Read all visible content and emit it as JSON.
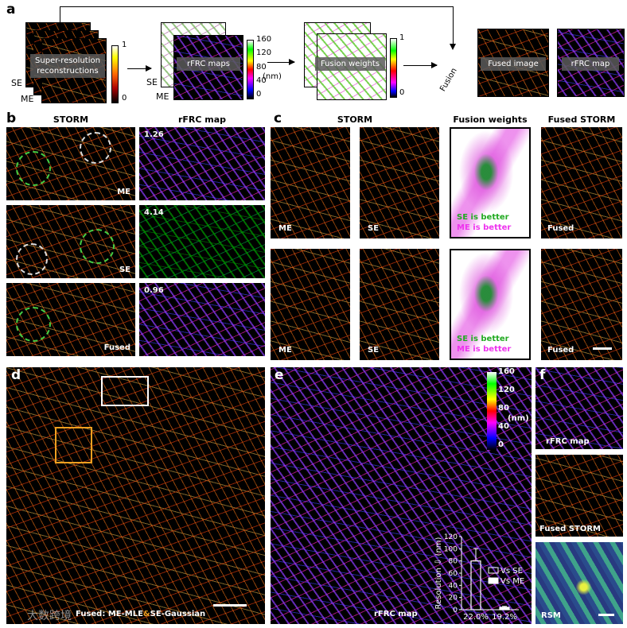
{
  "a": {
    "label": "a",
    "recon": "Super-resolution reconstructions",
    "se": "SE",
    "me": "ME",
    "cbar1": [
      1,
      0
    ],
    "rfrc": "rFRC maps",
    "cbar2": [
      160,
      120,
      80,
      40,
      0
    ],
    "unit": "(nm)",
    "weights": "Fusion weights",
    "cbar3": [
      1,
      0
    ],
    "fusion": "Fusion",
    "fused": "Fused image",
    "map": "rFRC map"
  },
  "b": {
    "label": "b",
    "col1": "STORM",
    "col2": "rFRC map",
    "rows": [
      "ME",
      "SE",
      "Fused"
    ],
    "scores": [
      1.26,
      4.14,
      0.96
    ]
  },
  "c": {
    "label": "c",
    "cols": [
      "STORM",
      "Fusion weights",
      "Fused STORM"
    ],
    "me": "ME",
    "se": "SE",
    "se_better": "SE is better",
    "me_better": "ME is better",
    "fused": "Fused"
  },
  "d": {
    "label": "d",
    "caption": [
      "Fused: ME-MLE",
      "&",
      "SE-Gaussian"
    ]
  },
  "e": {
    "label": "e",
    "map": "rFRC map",
    "cbar": [
      160,
      120,
      80,
      40,
      0
    ],
    "unit": "(nm)"
  },
  "f": {
    "label": "f",
    "panels": [
      "rFRC map",
      "Fused STORM",
      "RSM"
    ]
  },
  "watermark": "大数跨境",
  "chart_data": {
    "type": "bar",
    "ylabel": "Resolution ⇩ (nm)",
    "categories": [
      "22.0%",
      "19.2%"
    ],
    "series": [
      {
        "name": "Vs SE",
        "color": "#ffffff",
        "filled": false,
        "values": [
          80,
          null
        ],
        "errors": [
          20,
          null
        ]
      },
      {
        "name": "Vs ME",
        "color": "#ffffff",
        "filled": true,
        "values": [
          null,
          4
        ],
        "errors": [
          null,
          1.5
        ]
      }
    ],
    "ylim": [
      0,
      120
    ],
    "yticks": [
      0,
      20,
      40,
      60,
      80,
      100,
      120
    ]
  }
}
